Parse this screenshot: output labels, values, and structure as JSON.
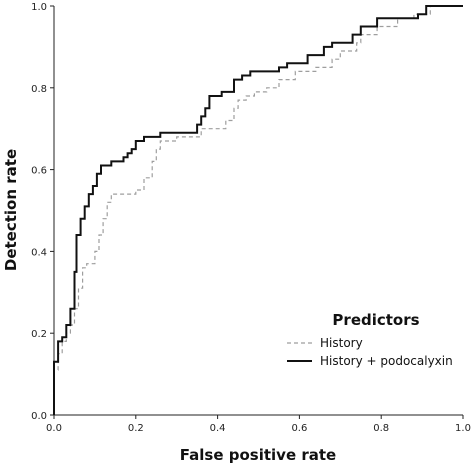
{
  "chart_data": {
    "type": "line",
    "title": "",
    "xlabel": "False positive rate",
    "ylabel": "Detection rate",
    "xlim": [
      0,
      1
    ],
    "ylim": [
      0,
      1
    ],
    "xticks": [
      "0.0",
      "0.2",
      "0.4",
      "0.6",
      "0.8",
      "1.0"
    ],
    "yticks": [
      "0.0",
      "0.2",
      "0.4",
      "0.6",
      "0.8",
      "1.0"
    ],
    "grid": false,
    "legend": {
      "title": "Predictors",
      "position": "bottom-right"
    },
    "series": [
      {
        "name": "History",
        "color": "#9e9e9e",
        "dash": "dashed",
        "points": [
          [
            0,
            0
          ],
          [
            0,
            0.11
          ],
          [
            0.01,
            0.11
          ],
          [
            0.01,
            0.15
          ],
          [
            0.02,
            0.15
          ],
          [
            0.02,
            0.18
          ],
          [
            0.03,
            0.18
          ],
          [
            0.03,
            0.2
          ],
          [
            0.04,
            0.2
          ],
          [
            0.04,
            0.22
          ],
          [
            0.05,
            0.22
          ],
          [
            0.05,
            0.26
          ],
          [
            0.06,
            0.26
          ],
          [
            0.06,
            0.31
          ],
          [
            0.07,
            0.31
          ],
          [
            0.07,
            0.36
          ],
          [
            0.08,
            0.36
          ],
          [
            0.08,
            0.37
          ],
          [
            0.1,
            0.37
          ],
          [
            0.1,
            0.4
          ],
          [
            0.11,
            0.4
          ],
          [
            0.11,
            0.44
          ],
          [
            0.12,
            0.44
          ],
          [
            0.12,
            0.48
          ],
          [
            0.13,
            0.48
          ],
          [
            0.13,
            0.52
          ],
          [
            0.14,
            0.52
          ],
          [
            0.14,
            0.54
          ],
          [
            0.2,
            0.54
          ],
          [
            0.2,
            0.55
          ],
          [
            0.22,
            0.55
          ],
          [
            0.22,
            0.58
          ],
          [
            0.24,
            0.58
          ],
          [
            0.24,
            0.62
          ],
          [
            0.25,
            0.62
          ],
          [
            0.25,
            0.65
          ],
          [
            0.26,
            0.65
          ],
          [
            0.26,
            0.67
          ],
          [
            0.3,
            0.67
          ],
          [
            0.3,
            0.68
          ],
          [
            0.36,
            0.68
          ],
          [
            0.36,
            0.7
          ],
          [
            0.42,
            0.7
          ],
          [
            0.42,
            0.72
          ],
          [
            0.44,
            0.72
          ],
          [
            0.44,
            0.75
          ],
          [
            0.45,
            0.75
          ],
          [
            0.45,
            0.77
          ],
          [
            0.47,
            0.77
          ],
          [
            0.47,
            0.78
          ],
          [
            0.49,
            0.78
          ],
          [
            0.49,
            0.79
          ],
          [
            0.52,
            0.79
          ],
          [
            0.52,
            0.8
          ],
          [
            0.55,
            0.8
          ],
          [
            0.55,
            0.82
          ],
          [
            0.59,
            0.82
          ],
          [
            0.59,
            0.84
          ],
          [
            0.64,
            0.84
          ],
          [
            0.64,
            0.85
          ],
          [
            0.68,
            0.85
          ],
          [
            0.68,
            0.87
          ],
          [
            0.7,
            0.87
          ],
          [
            0.7,
            0.89
          ],
          [
            0.74,
            0.89
          ],
          [
            0.74,
            0.91
          ],
          [
            0.75,
            0.91
          ],
          [
            0.75,
            0.93
          ],
          [
            0.79,
            0.93
          ],
          [
            0.79,
            0.95
          ],
          [
            0.84,
            0.95
          ],
          [
            0.84,
            0.97
          ],
          [
            0.88,
            0.97
          ],
          [
            0.88,
            0.98
          ],
          [
            0.92,
            0.98
          ],
          [
            0.92,
            1.0
          ],
          [
            1.0,
            1.0
          ]
        ]
      },
      {
        "name": "History + podocalyxin",
        "color": "#111111",
        "dash": "solid",
        "points": [
          [
            0,
            0
          ],
          [
            0,
            0.13
          ],
          [
            0.01,
            0.13
          ],
          [
            0.01,
            0.18
          ],
          [
            0.02,
            0.18
          ],
          [
            0.02,
            0.19
          ],
          [
            0.03,
            0.19
          ],
          [
            0.03,
            0.22
          ],
          [
            0.04,
            0.22
          ],
          [
            0.04,
            0.26
          ],
          [
            0.05,
            0.26
          ],
          [
            0.05,
            0.35
          ],
          [
            0.055,
            0.35
          ],
          [
            0.055,
            0.44
          ],
          [
            0.065,
            0.44
          ],
          [
            0.065,
            0.48
          ],
          [
            0.075,
            0.48
          ],
          [
            0.075,
            0.51
          ],
          [
            0.085,
            0.51
          ],
          [
            0.085,
            0.54
          ],
          [
            0.095,
            0.54
          ],
          [
            0.095,
            0.56
          ],
          [
            0.105,
            0.56
          ],
          [
            0.105,
            0.59
          ],
          [
            0.115,
            0.59
          ],
          [
            0.115,
            0.61
          ],
          [
            0.14,
            0.61
          ],
          [
            0.14,
            0.62
          ],
          [
            0.17,
            0.62
          ],
          [
            0.17,
            0.63
          ],
          [
            0.18,
            0.63
          ],
          [
            0.18,
            0.64
          ],
          [
            0.19,
            0.64
          ],
          [
            0.19,
            0.65
          ],
          [
            0.2,
            0.65
          ],
          [
            0.2,
            0.67
          ],
          [
            0.22,
            0.67
          ],
          [
            0.22,
            0.68
          ],
          [
            0.26,
            0.68
          ],
          [
            0.26,
            0.69
          ],
          [
            0.35,
            0.69
          ],
          [
            0.35,
            0.71
          ],
          [
            0.36,
            0.71
          ],
          [
            0.36,
            0.73
          ],
          [
            0.37,
            0.73
          ],
          [
            0.37,
            0.75
          ],
          [
            0.38,
            0.75
          ],
          [
            0.38,
            0.78
          ],
          [
            0.41,
            0.78
          ],
          [
            0.41,
            0.79
          ],
          [
            0.44,
            0.79
          ],
          [
            0.44,
            0.82
          ],
          [
            0.46,
            0.82
          ],
          [
            0.46,
            0.83
          ],
          [
            0.48,
            0.83
          ],
          [
            0.48,
            0.84
          ],
          [
            0.55,
            0.84
          ],
          [
            0.55,
            0.85
          ],
          [
            0.57,
            0.85
          ],
          [
            0.57,
            0.86
          ],
          [
            0.62,
            0.86
          ],
          [
            0.62,
            0.88
          ],
          [
            0.66,
            0.88
          ],
          [
            0.66,
            0.9
          ],
          [
            0.68,
            0.9
          ],
          [
            0.68,
            0.91
          ],
          [
            0.73,
            0.91
          ],
          [
            0.73,
            0.93
          ],
          [
            0.75,
            0.93
          ],
          [
            0.75,
            0.95
          ],
          [
            0.79,
            0.95
          ],
          [
            0.79,
            0.97
          ],
          [
            0.89,
            0.97
          ],
          [
            0.89,
            0.98
          ],
          [
            0.91,
            0.98
          ],
          [
            0.91,
            1.0
          ],
          [
            1.0,
            1.0
          ]
        ]
      }
    ]
  }
}
